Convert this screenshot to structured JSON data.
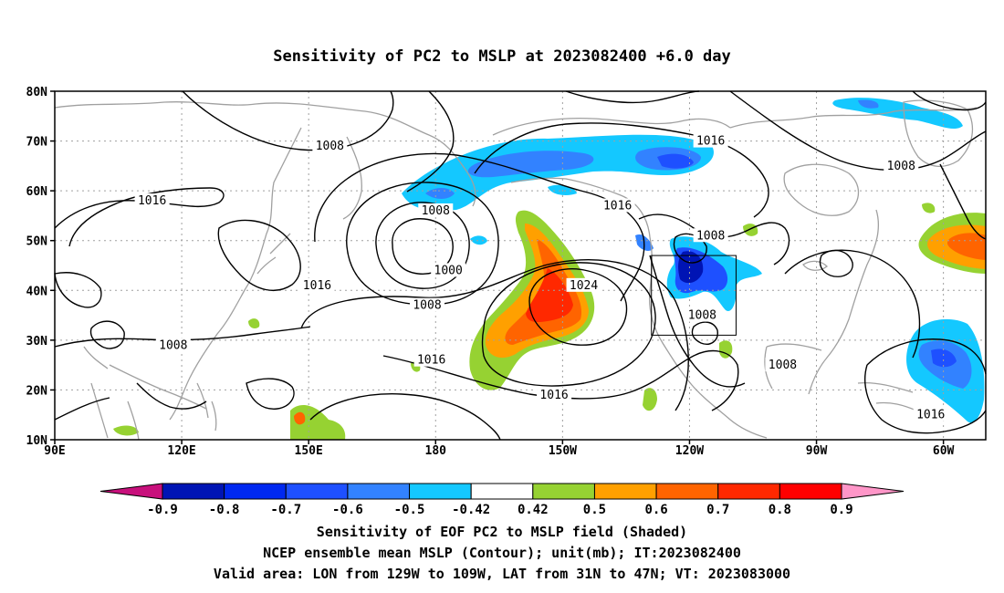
{
  "title": "Sensitivity of PC2 to MSLP at 2023082400 +6.0 day",
  "map": {
    "lat_labels": [
      "80N",
      "70N",
      "60N",
      "50N",
      "40N",
      "30N",
      "20N",
      "10N"
    ],
    "lon_labels": [
      "90E",
      "120E",
      "150E",
      "180",
      "150W",
      "120W",
      "90W",
      "60W"
    ],
    "lon_range": [
      90,
      310
    ],
    "lat_range": [
      10,
      80
    ],
    "gridlines": true,
    "valid_box": {
      "lon_min": 231,
      "lon_max": 251,
      "lat_min": 31,
      "lat_max": 47
    }
  },
  "contour_labels": [
    {
      "text": "1008",
      "lon": 155,
      "lat": 69
    },
    {
      "text": "1016",
      "lon": 245,
      "lat": 70
    },
    {
      "text": "1008",
      "lon": 290,
      "lat": 65
    },
    {
      "text": "1016",
      "lon": 113,
      "lat": 58
    },
    {
      "text": "1008",
      "lon": 180,
      "lat": 56
    },
    {
      "text": "1016",
      "lon": 223,
      "lat": 57
    },
    {
      "text": "1008",
      "lon": 245,
      "lat": 51
    },
    {
      "text": "1000",
      "lon": 183,
      "lat": 44
    },
    {
      "text": "1016",
      "lon": 152,
      "lat": 41
    },
    {
      "text": "1024",
      "lon": 215,
      "lat": 41
    },
    {
      "text": "1008",
      "lon": 178,
      "lat": 37
    },
    {
      "text": "1008",
      "lon": 243,
      "lat": 35
    },
    {
      "text": "1008",
      "lon": 118,
      "lat": 29
    },
    {
      "text": "1016",
      "lon": 179,
      "lat": 26
    },
    {
      "text": "1008",
      "lon": 262,
      "lat": 25
    },
    {
      "text": "1016",
      "lon": 208,
      "lat": 19
    },
    {
      "text": "1016",
      "lon": 297,
      "lat": 15
    }
  ],
  "colorbar": {
    "labels": [
      "-0.9",
      "-0.8",
      "-0.7",
      "-0.6",
      "-0.5",
      "-0.42",
      "0.42",
      "0.5",
      "0.6",
      "0.7",
      "0.8",
      "0.9"
    ],
    "colors": [
      "#c8107c",
      "#0014b4",
      "#0028f0",
      "#1e50ff",
      "#3282ff",
      "#14c8ff",
      "#ffffff",
      "#96d232",
      "#ffa000",
      "#ff6400",
      "#ff2800",
      "#ff0000",
      "#ff96c8"
    ]
  },
  "captions": [
    "Sensitivity of EOF PC2 to MSLP field (Shaded)",
    "NCEP ensemble mean MSLP (Contour); unit(mb); IT:2023082400",
    "Valid area: LON from 129W to 109W, LAT from 31N to 47N; VT: 2023083000"
  ]
}
